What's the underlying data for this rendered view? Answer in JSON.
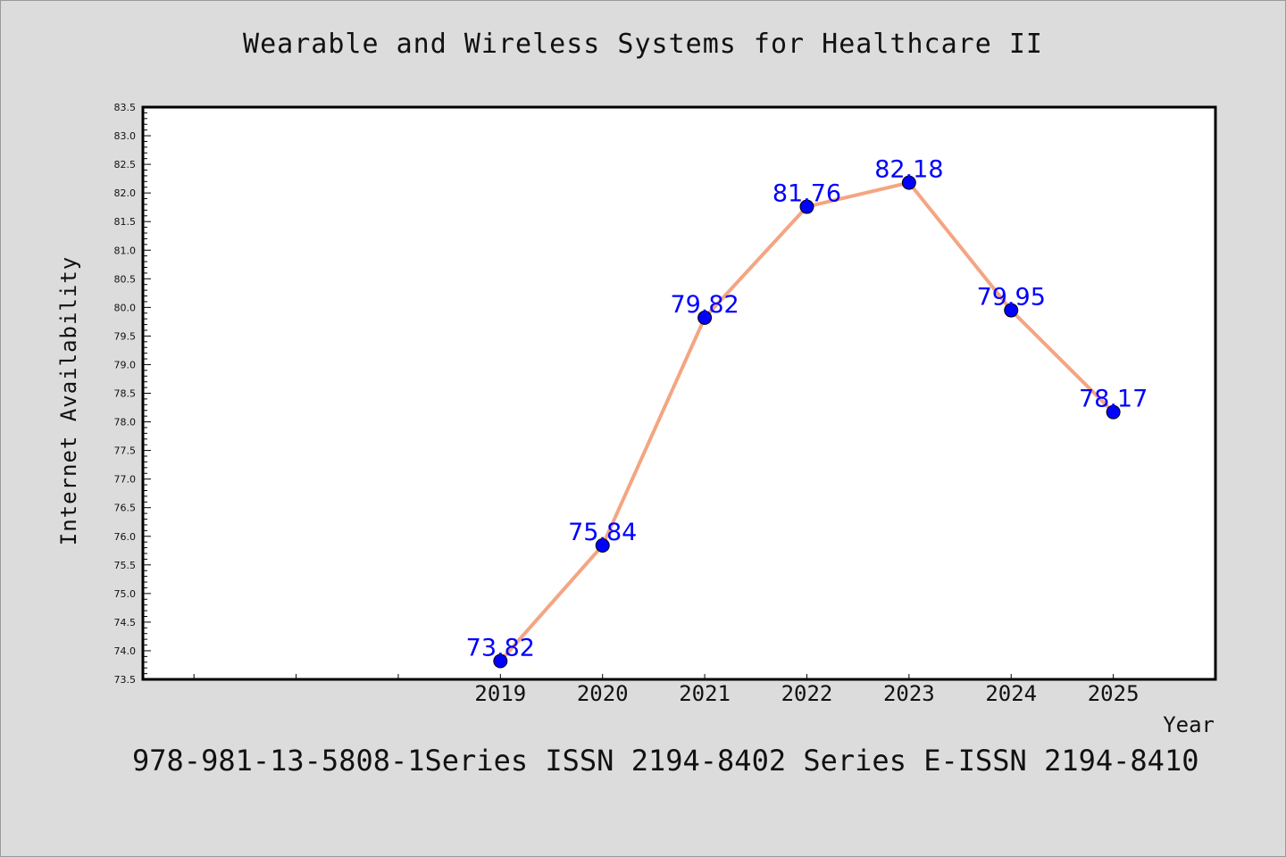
{
  "chart_data": {
    "type": "line",
    "title": "Wearable and Wireless Systems for Healthcare II",
    "xlabel": "Year",
    "ylabel": "Internet Availability",
    "x": [
      2019,
      2020,
      2021,
      2022,
      2023,
      2024,
      2025
    ],
    "x_tick_labels": [
      "2019",
      "2020",
      "2021",
      "2022",
      "2023",
      "2024",
      "2025"
    ],
    "series": [
      {
        "values": [
          73.82,
          75.84,
          79.82,
          81.76,
          82.18,
          79.95,
          78.17
        ],
        "data_labels": [
          "73.82",
          "75.84",
          "79.82",
          "81.76",
          "82.18",
          "79.95",
          "78.17"
        ],
        "line_color": "#f4a582",
        "marker_color": "#0000ff"
      }
    ],
    "xlim": [
      2015.5,
      2026.0
    ],
    "ylim": [
      73.5,
      83.5
    ],
    "y_tick_labels": [
      "73.5",
      "74.0",
      "74.5",
      "75.0",
      "75.5",
      "76.0",
      "76.5",
      "77.0",
      "77.5",
      "78.0",
      "78.5",
      "79.0",
      "79.5",
      "80.0",
      "80.5",
      "81.0",
      "81.5",
      "82.0",
      "82.5",
      "83.0",
      "83.5"
    ],
    "grid": false,
    "legend": "none"
  },
  "footer": {
    "text": "978-981-13-5808-1Series ISSN 2194-8402 Series E-ISSN 2194-8410"
  },
  "colors": {
    "background": "#dcdcdc",
    "plot_background": "#ffffff",
    "line": "#f4a582",
    "marker": "#0000ff",
    "data_label": "#0000ff"
  }
}
